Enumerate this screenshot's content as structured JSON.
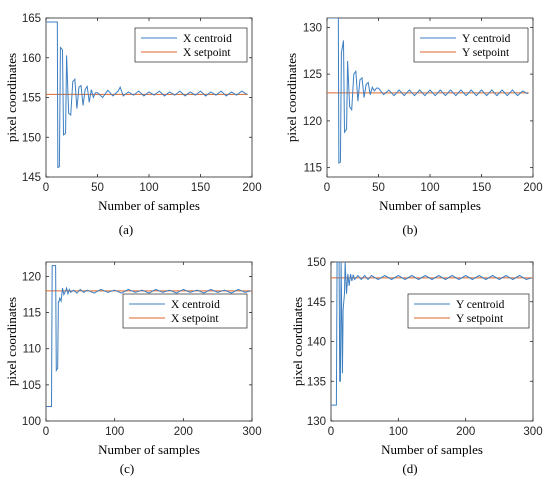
{
  "colors": {
    "centroid": "#3d7fc1",
    "setpoint": "#e0662c",
    "axis": "#262626"
  },
  "chart_data": [
    {
      "type": "line",
      "caption": "(a)",
      "xlabel": "Number of  samples",
      "ylabel": "pixel coordinates",
      "xlim": [
        0,
        200
      ],
      "ylim": [
        145,
        165
      ],
      "xticks": [
        0,
        50,
        100,
        150,
        200
      ],
      "yticks": [
        145,
        150,
        155,
        160,
        165
      ],
      "legend": "top-right",
      "series": [
        {
          "name": "X centroid",
          "role": "centroid",
          "x": [
            0,
            11,
            11.5,
            13,
            14,
            16,
            17,
            19,
            20,
            22,
            24,
            26,
            28,
            30,
            32,
            34,
            36,
            38,
            40,
            42,
            44,
            46,
            48,
            50,
            55,
            60,
            65,
            70,
            72,
            75,
            80,
            85,
            90,
            95,
            100,
            105,
            110,
            115,
            120,
            125,
            130,
            135,
            140,
            145,
            150,
            155,
            160,
            165,
            170,
            175,
            180,
            185,
            190,
            195
          ],
          "y": [
            164.5,
            164.5,
            146.2,
            146.3,
            161.3,
            161.0,
            150.3,
            150.5,
            160.3,
            153.0,
            152.8,
            157.0,
            157.3,
            153.6,
            156.3,
            156.5,
            154.0,
            156.0,
            156.4,
            154.4,
            156.0,
            155.0,
            155.6,
            155.6,
            155.0,
            155.9,
            155.2,
            155.8,
            156.3,
            155.2,
            155.7,
            155.3,
            155.8,
            155.2,
            155.7,
            155.3,
            155.8,
            155.2,
            155.7,
            155.3,
            155.8,
            155.2,
            155.7,
            155.3,
            155.8,
            155.2,
            155.7,
            155.3,
            155.8,
            155.2,
            155.7,
            155.3,
            155.8,
            155.4
          ]
        },
        {
          "name": "X setpoint",
          "role": "setpoint",
          "x": [
            0,
            196
          ],
          "y": [
            155.4,
            155.4
          ]
        }
      ]
    },
    {
      "type": "line",
      "caption": "(b)",
      "xlabel": "Number of  samples",
      "ylabel": "pixel coordinates",
      "xlim": [
        0,
        200
      ],
      "ylim": [
        114,
        131
      ],
      "xticks": [
        0,
        50,
        100,
        150,
        200
      ],
      "yticks": [
        115,
        120,
        125,
        130
      ],
      "legend": "top-right",
      "series": [
        {
          "name": "Y centroid",
          "role": "centroid",
          "x": [
            0,
            11,
            11.5,
            13,
            14,
            16,
            17,
            19,
            20,
            22,
            24,
            26,
            28,
            30,
            32,
            34,
            36,
            38,
            40,
            42,
            44,
            46,
            48,
            50,
            55,
            60,
            65,
            70,
            75,
            80,
            85,
            90,
            95,
            100,
            105,
            110,
            115,
            120,
            125,
            130,
            135,
            140,
            145,
            150,
            155,
            160,
            165,
            170,
            175,
            180,
            185,
            190,
            195
          ],
          "y": [
            131,
            131,
            115.5,
            115.6,
            127.3,
            128.6,
            118.8,
            119.1,
            126.4,
            121.5,
            121.2,
            125.0,
            125.3,
            122.1,
            124.4,
            124.6,
            122.5,
            123.9,
            124.1,
            122.8,
            123.6,
            123.2,
            123.5,
            123.5,
            122.8,
            123.3,
            122.7,
            123.3,
            122.7,
            123.3,
            122.7,
            123.3,
            122.7,
            123.3,
            122.7,
            123.3,
            122.7,
            123.3,
            122.7,
            123.3,
            122.7,
            123.3,
            122.7,
            123.3,
            122.7,
            123.3,
            122.7,
            123.3,
            122.7,
            123.3,
            122.7,
            123.2,
            122.9
          ]
        },
        {
          "name": "Y setpoint",
          "role": "setpoint",
          "x": [
            0,
            196
          ],
          "y": [
            123.0,
            123.0
          ]
        }
      ]
    },
    {
      "type": "line",
      "caption": "(c)",
      "xlabel": "Number of  samples",
      "ylabel": "pixel coordinates",
      "xlim": [
        0,
        300
      ],
      "ylim": [
        100,
        122
      ],
      "xticks": [
        0,
        100,
        200,
        300
      ],
      "yticks": [
        100,
        105,
        110,
        115,
        120
      ],
      "legend": "center-right",
      "series": [
        {
          "name": "X centroid",
          "role": "centroid",
          "x": [
            0,
            8,
            9,
            14,
            15,
            17,
            18,
            19,
            20,
            22,
            24,
            26,
            28,
            30,
            32,
            34,
            36,
            40,
            45,
            50,
            55,
            60,
            70,
            80,
            90,
            100,
            110,
            120,
            130,
            140,
            150,
            160,
            170,
            180,
            190,
            200,
            210,
            220,
            230,
            240,
            250,
            260,
            270,
            280,
            290,
            298
          ],
          "y": [
            102,
            102,
            121.5,
            121.5,
            107,
            107.3,
            116.5,
            116.5,
            117.0,
            116.6,
            118.4,
            117.5,
            117.9,
            118.4,
            117.6,
            118.2,
            117.8,
            118.1,
            117.7,
            118.2,
            117.8,
            118.1,
            117.7,
            118.2,
            117.8,
            118.1,
            117.7,
            118.2,
            117.8,
            118.1,
            117.7,
            118.2,
            117.8,
            118.1,
            117.7,
            118.2,
            117.8,
            118.1,
            117.7,
            118.2,
            117.8,
            118.1,
            117.7,
            118.2,
            117.8,
            118.0
          ]
        },
        {
          "name": "X setpoint",
          "role": "setpoint",
          "x": [
            0,
            300
          ],
          "y": [
            118.0,
            118.0
          ]
        }
      ]
    },
    {
      "type": "line",
      "caption": "(d)",
      "xlabel": "Number of  samples",
      "ylabel": "pixel coordinates",
      "xlim": [
        0,
        300
      ],
      "ylim": [
        130,
        150
      ],
      "xticks": [
        0,
        100,
        200,
        300
      ],
      "yticks": [
        130,
        135,
        140,
        145,
        150
      ],
      "legend": "center-right",
      "series": [
        {
          "name": "Y centroid",
          "role": "centroid",
          "x": [
            0,
            8,
            9,
            12,
            13,
            14,
            15,
            17,
            18,
            20,
            21,
            23,
            25,
            27,
            29,
            31,
            33,
            35,
            40,
            45,
            50,
            55,
            60,
            70,
            80,
            90,
            100,
            110,
            120,
            130,
            140,
            150,
            160,
            170,
            180,
            190,
            200,
            210,
            220,
            230,
            240,
            250,
            260,
            270,
            280,
            290,
            298
          ],
          "y": [
            132,
            132,
            150,
            150,
            135,
            135,
            150,
            136.0,
            144.0,
            146.0,
            150,
            146.0,
            148.5,
            147.0,
            148.5,
            147.6,
            148.4,
            147.8,
            148.3,
            147.8,
            148.3,
            147.8,
            148.3,
            147.8,
            148.3,
            147.8,
            148.3,
            147.8,
            148.3,
            147.8,
            148.3,
            147.8,
            148.3,
            147.8,
            148.3,
            147.8,
            148.3,
            147.8,
            148.3,
            147.8,
            148.3,
            147.8,
            148.3,
            147.8,
            148.3,
            147.8,
            148.0
          ]
        },
        {
          "name": "Y setpoint",
          "role": "setpoint",
          "x": [
            0,
            300
          ],
          "y": [
            148.0,
            148.0
          ]
        }
      ]
    }
  ]
}
